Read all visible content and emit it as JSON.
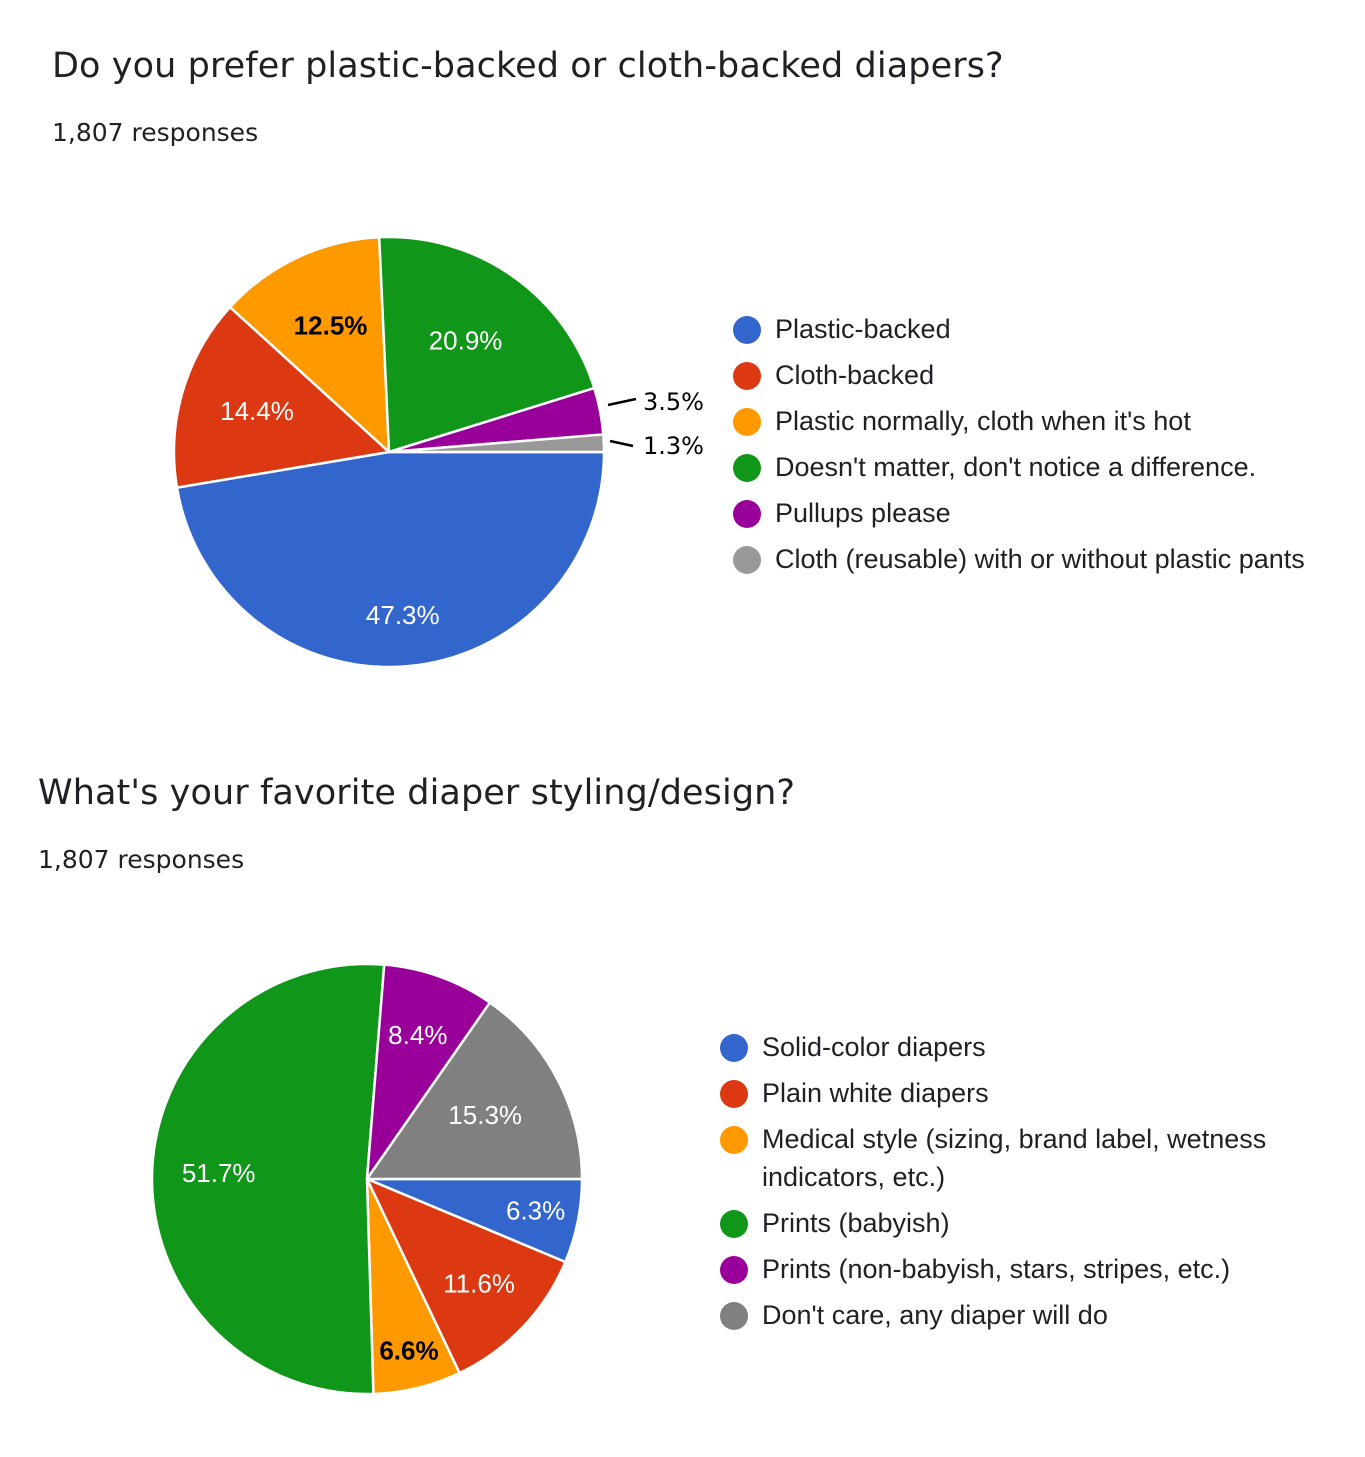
{
  "questions": [
    {
      "title": "Do you prefer plastic-backed or cloth-backed diapers?",
      "responses": "1,807 responses"
    },
    {
      "title": "What's your favorite diaper styling/design?",
      "responses": "1,807 responses"
    }
  ],
  "chart_data": [
    {
      "type": "pie",
      "title": "Do you prefer plastic-backed or cloth-backed diapers?",
      "categories": [
        "Plastic-backed",
        "Cloth-backed",
        "Plastic normally, cloth when it's hot",
        "Doesn't matter, don't notice a difference.",
        "Pullups please",
        "Cloth (reusable) with or without plastic pants"
      ],
      "values": [
        47.3,
        14.4,
        12.5,
        20.9,
        3.5,
        1.3
      ],
      "labels": [
        "47.3%",
        "14.4%",
        "12.5%",
        "20.9%",
        "3.5%",
        "1.3%"
      ],
      "colors": [
        "#3366cc",
        "#dc3912",
        "#ff9900",
        "#109618",
        "#990099",
        "#999999"
      ],
      "label_colors": [
        "#ffffff",
        "#ffffff",
        "#000000",
        "#ffffff",
        "#000000",
        "#000000"
      ],
      "legend_position": "right"
    },
    {
      "type": "pie",
      "title": "What's your favorite diaper styling/design?",
      "categories": [
        "Solid-color diapers",
        "Plain white diapers",
        "Medical style (sizing, brand label, wetness indicators, etc.)",
        "Prints (babyish)",
        "Prints (non-babyish, stars, stripes, etc.)",
        "Don't care, any diaper will do"
      ],
      "values": [
        6.3,
        11.6,
        6.6,
        51.7,
        8.4,
        15.3
      ],
      "labels": [
        "6.3%",
        "11.6%",
        "6.6%",
        "51.7%",
        "8.4%",
        "15.3%"
      ],
      "colors": [
        "#3366cc",
        "#dc3912",
        "#ff9900",
        "#109618",
        "#990099",
        "#808080"
      ],
      "label_colors": [
        "#ffffff",
        "#ffffff",
        "#000000",
        "#ffffff",
        "#ffffff",
        "#ffffff"
      ],
      "legend_position": "right"
    }
  ]
}
